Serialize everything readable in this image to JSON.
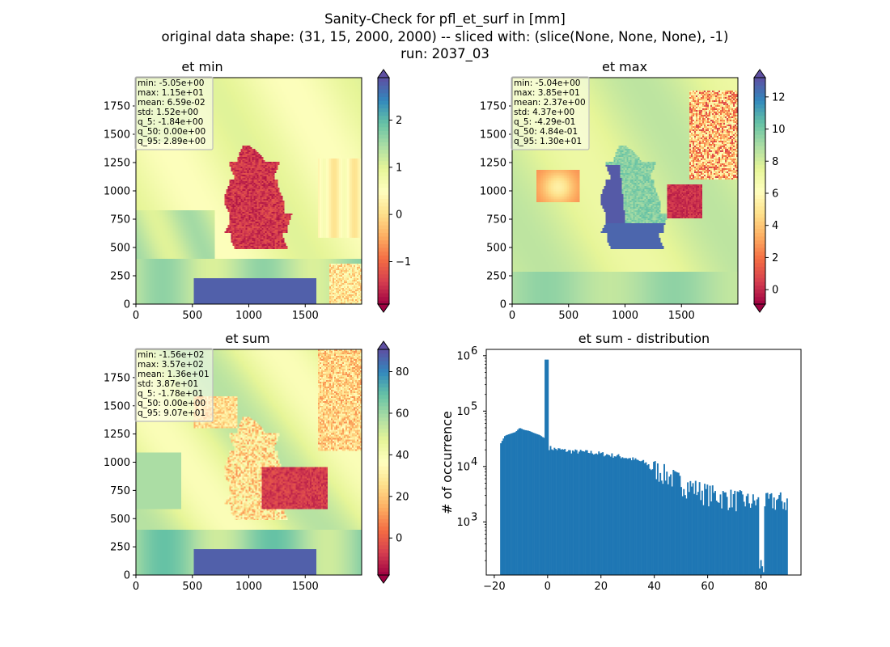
{
  "figure": {
    "title_lines": [
      "Sanity-Check for pfl_et_surf in [mm]",
      "original data shape: (31, 15, 2000, 2000) -- sliced with: (slice(None, None, None), -1)",
      "run: 2037_03"
    ]
  },
  "colormap": "Spectral",
  "chart_data": [
    {
      "type": "heatmap",
      "title": "et min",
      "xlim": [
        0,
        2000
      ],
      "ylim": [
        0,
        2000
      ],
      "xticks": [
        0,
        500,
        1000,
        1500
      ],
      "yticks": [
        0,
        250,
        500,
        750,
        1000,
        1250,
        1500,
        1750
      ],
      "colorbar": {
        "vmin": -1.9,
        "vmax": 2.9,
        "ticks": [
          -1,
          0,
          1,
          2
        ],
        "tick_labels": [
          "−1",
          "0",
          "1",
          "2"
        ],
        "extend": "both"
      },
      "stats": [
        "min: -5.05e+00",
        "max: 1.15e+01",
        "mean: 6.59e-02",
        "std: 1.52e+00",
        "q_5: -1.84e+00",
        "q_50: 0.00e+00",
        "q_95: 2.89e+00"
      ],
      "field_pattern": "min"
    },
    {
      "type": "heatmap",
      "title": "et max",
      "xlim": [
        0,
        2000
      ],
      "ylim": [
        0,
        2000
      ],
      "xticks": [
        0,
        500,
        1000,
        1500
      ],
      "yticks": [
        0,
        250,
        500,
        750,
        1000,
        1250,
        1500,
        1750
      ],
      "colorbar": {
        "vmin": -0.9,
        "vmax": 13.2,
        "ticks": [
          0,
          2,
          4,
          6,
          8,
          10,
          12
        ],
        "tick_labels": [
          "0",
          "2",
          "4",
          "6",
          "8",
          "10",
          "12"
        ],
        "extend": "both"
      },
      "stats": [
        "min: -5.04e+00",
        "max: 3.85e+01",
        "mean: 2.37e+00",
        "std: 4.37e+00",
        "q_5: -4.29e-01",
        "q_50: 4.84e-01",
        "q_95: 1.30e+01"
      ],
      "field_pattern": "max"
    },
    {
      "type": "heatmap",
      "title": "et sum",
      "xlim": [
        0,
        2000
      ],
      "ylim": [
        0,
        2000
      ],
      "xticks": [
        0,
        500,
        1000,
        1500
      ],
      "yticks": [
        0,
        250,
        500,
        750,
        1000,
        1250,
        1500,
        1750
      ],
      "colorbar": {
        "vmin": -17.8,
        "vmax": 90.7,
        "ticks": [
          0,
          20,
          40,
          60,
          80
        ],
        "tick_labels": [
          "0",
          "20",
          "40",
          "60",
          "80"
        ],
        "extend": "both"
      },
      "stats": [
        "min: -1.56e+02",
        "max: 3.57e+02",
        "mean: 1.36e+01",
        "std: 3.87e+01",
        "q_5: -1.78e+01",
        "q_50: 0.00e+00",
        "q_95: 9.07e+01"
      ],
      "field_pattern": "sum"
    },
    {
      "type": "bar",
      "title": "et sum - distribution",
      "ylabel": "# of occurrence",
      "yscale": "log",
      "xlim": [
        -23,
        95
      ],
      "ylim": [
        110,
        1300000
      ],
      "xticks": [
        -20,
        0,
        20,
        40,
        60,
        80
      ],
      "xtick_labels": [
        "−20",
        "0",
        "20",
        "40",
        "60",
        "80"
      ],
      "yticks": [
        1000,
        10000,
        100000,
        1000000
      ],
      "ytick_exponents": [
        "3",
        "4",
        "5",
        "6"
      ],
      "bar_color": "#1f77b4",
      "bins": [
        {
          "x": -17.8,
          "count": 25000
        },
        {
          "x": -16.0,
          "count": 36000
        },
        {
          "x": -14.0,
          "count": 39000
        },
        {
          "x": -12.0,
          "count": 42000
        },
        {
          "x": -10.5,
          "count": 50000
        },
        {
          "x": -9.0,
          "count": 46000
        },
        {
          "x": -7.0,
          "count": 44000
        },
        {
          "x": -5.0,
          "count": 40000
        },
        {
          "x": -3.0,
          "count": 37000
        },
        {
          "x": -1.5,
          "count": 33000
        },
        {
          "x": -0.3,
          "count": 850000
        },
        {
          "x": 0.5,
          "count": 22000
        },
        {
          "x": 2.0,
          "count": 21000
        },
        {
          "x": 5.0,
          "count": 20000
        },
        {
          "x": 8.0,
          "count": 19000
        },
        {
          "x": 12.0,
          "count": 18500
        },
        {
          "x": 16.0,
          "count": 18000
        },
        {
          "x": 20.0,
          "count": 17000
        },
        {
          "x": 24.0,
          "count": 16000
        },
        {
          "x": 28.0,
          "count": 15000
        },
        {
          "x": 32.0,
          "count": 13500
        },
        {
          "x": 36.0,
          "count": 12000
        },
        {
          "x": 40.0,
          "count": 9500
        },
        {
          "x": 44.0,
          "count": 7500
        },
        {
          "x": 48.0,
          "count": 6000
        },
        {
          "x": 52.0,
          "count": 4800
        },
        {
          "x": 56.0,
          "count": 4000
        },
        {
          "x": 60.0,
          "count": 3400
        },
        {
          "x": 64.0,
          "count": 3000
        },
        {
          "x": 68.0,
          "count": 2800
        },
        {
          "x": 72.0,
          "count": 2600
        },
        {
          "x": 75.0,
          "count": 2400
        },
        {
          "x": 78.0,
          "count": 2300
        },
        {
          "x": 80.0,
          "count": 170
        },
        {
          "x": 82.0,
          "count": 2300
        },
        {
          "x": 86.0,
          "count": 2500
        },
        {
          "x": 90.0,
          "count": 2300
        }
      ]
    }
  ]
}
